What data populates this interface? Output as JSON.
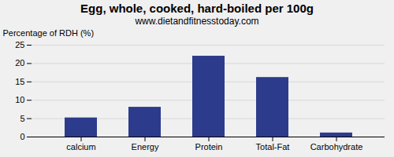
{
  "chart_data": {
    "type": "bar",
    "title": "Egg, whole, cooked, hard-boiled per 100g",
    "subtitle": "www.dietandfitnesstoday.com",
    "categories": [
      "calcium",
      "Energy",
      "Protein",
      "Total-Fat",
      "Carbohydrate"
    ],
    "values": [
      5.2,
      8.1,
      22.0,
      16.2,
      1.1
    ],
    "color": "#2d3b8c",
    "ylabel": "Percentage of RDH (%)",
    "ylim": [
      0,
      25
    ],
    "yticks": [
      0,
      5,
      10,
      15,
      20,
      25
    ],
    "grid": true
  }
}
